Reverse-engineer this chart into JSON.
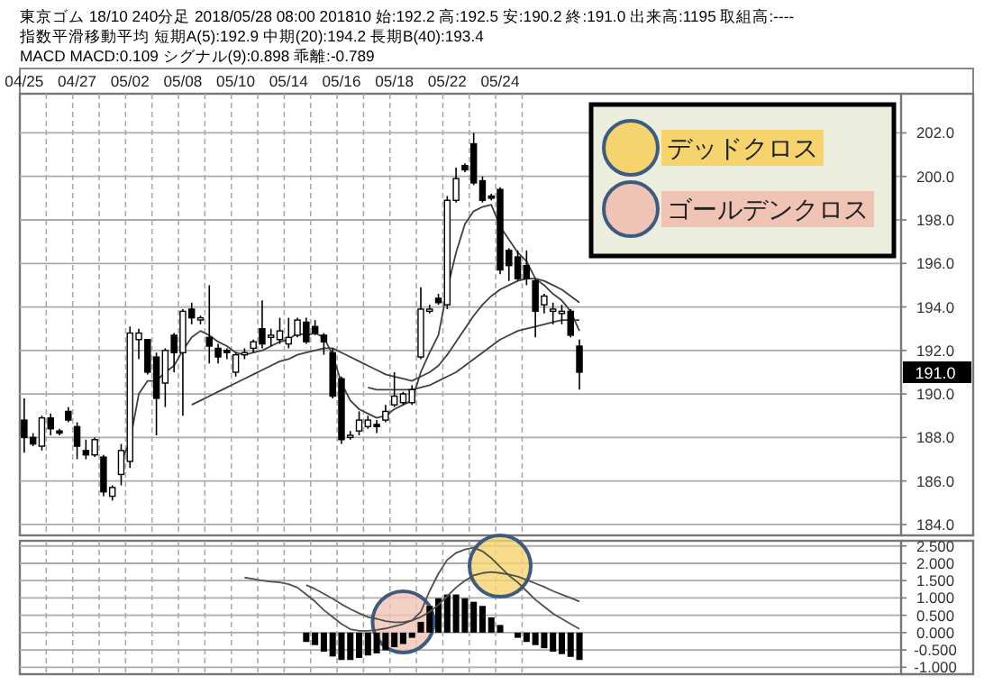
{
  "chart_data": [
    {
      "type": "candlestick",
      "title": "東京ゴム 18/10 240分足 2018/05/28 08:00 201810 始:192.2 高:192.5 安:190.2 終:191.0 出来高:1195 取組高:----",
      "subtitle": "指数平滑移動平均 短期A(5):192.9 中期(20):194.2 長期B(40):193.4",
      "annotations": [
        "MACD MACD:0.109 シグナル(9):0.898 乖離:-0.789",
        {
          "text": "191.0",
          "y": 191.0
        }
      ],
      "categories": [
        "04/25",
        null,
        null,
        null,
        null,
        null,
        "04/27",
        null,
        null,
        null,
        null,
        null,
        "05/02",
        null,
        null,
        null,
        null,
        null,
        "05/08",
        null,
        null,
        null,
        null,
        null,
        "05/10",
        null,
        null,
        null,
        null,
        null,
        "05/14",
        null,
        null,
        null,
        null,
        null,
        "05/16",
        null,
        null,
        null,
        null,
        null,
        "05/18",
        null,
        null,
        null,
        null,
        null,
        "05/22",
        null,
        null,
        null,
        null,
        null,
        "05/24",
        null,
        null,
        null,
        null,
        null,
        null,
        null,
        null,
        null,
        null,
        null,
        null,
        null,
        null,
        null,
        null,
        null,
        null,
        null,
        null,
        null,
        null,
        null,
        null,
        null,
        null,
        null,
        null,
        null,
        null,
        null,
        null,
        null,
        null,
        null,
        null,
        null,
        null,
        null,
        null,
        null,
        null,
        null,
        null,
        null
      ],
      "ohlc": [
        [
          188.8,
          189.8,
          187.3,
          188.0
        ],
        [
          188.0,
          188.2,
          187.6,
          187.7
        ],
        [
          187.6,
          189.0,
          187.4,
          188.9
        ],
        [
          188.9,
          189.1,
          188.1,
          188.4
        ],
        [
          188.3,
          188.4,
          188.1,
          188.2
        ],
        [
          189.2,
          189.4,
          188.7,
          188.8
        ],
        [
          188.5,
          188.7,
          187.0,
          187.6
        ],
        [
          187.4,
          187.9,
          187.0,
          187.2
        ],
        [
          187.2,
          188.0,
          187.1,
          187.9
        ],
        [
          187.1,
          187.2,
          185.3,
          185.5
        ],
        [
          185.3,
          185.8,
          185.1,
          185.7
        ],
        [
          186.3,
          187.7,
          185.8,
          187.4
        ],
        [
          186.9,
          193.1,
          186.6,
          192.8
        ],
        [
          192.5,
          193.0,
          191.6,
          192.8
        ],
        [
          192.5,
          192.5,
          190.9,
          191.0
        ],
        [
          191.7,
          191.9,
          188.1,
          189.8
        ],
        [
          190.5,
          192.1,
          189.4,
          192.0
        ],
        [
          192.7,
          192.8,
          191.0,
          191.9
        ],
        [
          191.9,
          193.9,
          189.0,
          193.8
        ],
        [
          193.9,
          194.2,
          193.2,
          193.5
        ],
        [
          193.4,
          193.6,
          193.2,
          193.5
        ],
        [
          192.6,
          195.0,
          191.4,
          192.2
        ],
        [
          192.1,
          192.3,
          191.4,
          191.7
        ],
        [
          192.0,
          192.1,
          191.6,
          191.9
        ],
        [
          191.0,
          191.9,
          190.8,
          191.8
        ],
        [
          191.8,
          192.1,
          191.6,
          191.9
        ],
        [
          192.1,
          192.5,
          191.9,
          192.4
        ],
        [
          193.0,
          194.3,
          192.1,
          192.3
        ],
        [
          192.6,
          193.0,
          192.2,
          192.7
        ],
        [
          192.5,
          193.5,
          192.3,
          192.9
        ],
        [
          192.3,
          193.5,
          192.1,
          192.6
        ],
        [
          192.7,
          193.5,
          192.6,
          193.4
        ],
        [
          193.3,
          193.5,
          192.3,
          192.4
        ],
        [
          193.1,
          193.4,
          192.7,
          192.8
        ],
        [
          192.7,
          192.8,
          191.8,
          192.4
        ],
        [
          191.9,
          192.1,
          189.8,
          189.9
        ],
        [
          190.7,
          190.8,
          187.7,
          187.9
        ],
        [
          188.0,
          188.3,
          187.9,
          188.1
        ],
        [
          188.3,
          189.2,
          188.1,
          188.8
        ],
        [
          188.5,
          189.0,
          188.4,
          188.8
        ],
        [
          188.6,
          188.8,
          188.2,
          188.5
        ],
        [
          188.8,
          189.5,
          188.7,
          189.2
        ],
        [
          189.5,
          191.0,
          189.4,
          189.9
        ],
        [
          189.6,
          190.1,
          189.5,
          190.0
        ],
        [
          189.6,
          190.4,
          189.5,
          190.2
        ],
        [
          191.7,
          194.9,
          191.6,
          193.9
        ],
        [
          193.8,
          194.1,
          193.7,
          193.9
        ],
        [
          194.4,
          194.6,
          194.1,
          194.2
        ],
        [
          194.1,
          199.1,
          193.9,
          198.9
        ],
        [
          198.9,
          200.4,
          198.8,
          199.9
        ],
        [
          200.5,
          200.6,
          200.2,
          200.3
        ],
        [
          201.5,
          202.0,
          199.6,
          199.7
        ],
        [
          199.8,
          200.0,
          198.8,
          198.9
        ],
        [
          199.1,
          199.2,
          198.9,
          199.0
        ],
        [
          199.4,
          199.5,
          195.5,
          195.7
        ],
        [
          196.6,
          196.7,
          195.2,
          195.9
        ],
        [
          196.3,
          196.6,
          195.2,
          195.3
        ],
        [
          195.9,
          196.6,
          195.0,
          195.3
        ],
        [
          195.2,
          195.3,
          192.6,
          193.8
        ],
        [
          194.1,
          194.6,
          193.7,
          194.5
        ],
        [
          193.8,
          194.2,
          193.2,
          193.9
        ],
        [
          193.7,
          194.1,
          193.2,
          193.8
        ],
        [
          193.8,
          193.9,
          192.6,
          192.7
        ],
        [
          192.2,
          192.5,
          190.2,
          191.0
        ],
        null,
        null,
        null,
        null,
        null,
        null,
        null,
        null,
        null,
        null,
        null,
        null,
        null,
        null,
        null,
        null,
        null,
        null,
        null,
        null,
        null,
        null,
        null,
        null,
        null,
        null,
        null,
        null,
        null,
        null,
        null,
        null,
        null,
        null,
        null,
        null
      ],
      "series": [
        {
          "type": "line",
          "color": "#404040",
          "values": [
            null,
            null,
            null,
            null,
            null,
            null,
            null,
            null,
            null,
            null,
            null,
            186.9,
            187.8,
            190.0,
            190.6,
            190.6,
            191.0,
            191.3,
            192.0,
            192.6,
            192.9,
            192.7,
            192.4,
            192.2,
            191.9,
            191.8,
            191.9,
            192.0,
            192.2,
            192.4,
            192.5,
            192.8,
            192.7,
            192.8,
            192.6,
            191.8,
            190.5,
            189.7,
            189.3,
            189.1,
            188.9,
            189.0,
            189.3,
            189.5,
            189.7,
            191.0,
            191.9,
            192.7,
            194.8,
            196.5,
            197.8,
            198.4,
            198.6,
            198.7,
            197.7,
            197.1,
            196.5,
            196.1,
            195.3,
            195.0,
            194.6,
            194.3,
            193.8,
            192.9,
            null,
            null,
            null,
            null,
            null,
            null,
            null,
            null,
            null,
            null,
            null,
            null,
            null,
            null,
            null,
            null,
            null,
            null,
            null,
            null,
            null,
            null,
            null,
            null,
            null,
            null,
            null,
            null,
            null,
            null,
            null,
            null,
            null,
            null,
            null,
            null
          ]
        },
        {
          "type": "line",
          "color": "#404040",
          "values": [
            null,
            null,
            null,
            null,
            null,
            null,
            null,
            null,
            null,
            null,
            null,
            null,
            null,
            null,
            null,
            null,
            null,
            null,
            null,
            189.5,
            189.7,
            189.9,
            190.1,
            190.3,
            190.5,
            190.7,
            190.9,
            191.1,
            191.3,
            191.5,
            191.6,
            191.8,
            191.9,
            192.0,
            192.1,
            192.1,
            191.9,
            191.7,
            191.5,
            191.3,
            191.1,
            190.9,
            190.8,
            190.7,
            190.6,
            190.8,
            191.0,
            191.3,
            191.8,
            192.4,
            193.0,
            193.6,
            194.1,
            194.5,
            194.8,
            195.0,
            195.2,
            195.3,
            195.3,
            195.2,
            195.0,
            194.8,
            194.5,
            194.2,
            null,
            null,
            null,
            null,
            null,
            null,
            null,
            null,
            null,
            null,
            null,
            null,
            null,
            null,
            null,
            null,
            null,
            null,
            null,
            null,
            null,
            null,
            null,
            null,
            null,
            null,
            null,
            null,
            null,
            null,
            null,
            null,
            null,
            null,
            null,
            null
          ]
        },
        {
          "type": "line",
          "color": "#404040",
          "values": [
            null,
            null,
            null,
            null,
            null,
            null,
            null,
            null,
            null,
            null,
            null,
            null,
            null,
            null,
            null,
            null,
            null,
            null,
            null,
            null,
            null,
            null,
            null,
            null,
            null,
            null,
            null,
            null,
            null,
            null,
            null,
            null,
            null,
            null,
            null,
            null,
            null,
            null,
            null,
            190.3,
            190.2,
            190.2,
            190.2,
            190.2,
            190.2,
            190.3,
            190.4,
            190.6,
            190.8,
            191.0,
            191.3,
            191.6,
            191.9,
            192.2,
            192.5,
            192.7,
            192.9,
            193.0,
            193.1,
            193.2,
            193.3,
            193.4,
            193.4,
            193.4,
            null,
            null,
            null,
            null,
            null,
            null,
            null,
            null,
            null,
            null,
            null,
            null,
            null,
            null,
            null,
            null,
            null,
            null,
            null,
            null,
            null,
            null,
            null,
            null,
            null,
            null,
            null,
            null,
            null,
            null,
            null,
            null,
            null,
            null,
            null,
            null
          ]
        }
      ],
      "ylim": [
        183.5,
        203.8
      ],
      "yticks": [
        {
          "value": 184,
          "label": "184.0"
        },
        {
          "value": 186,
          "label": "186.0"
        },
        {
          "value": 188,
          "label": "188.0"
        },
        {
          "value": 190,
          "label": "190.0"
        },
        {
          "value": 192,
          "label": "192.0"
        },
        {
          "value": 194,
          "label": "194.0"
        },
        {
          "value": 196,
          "label": "196.0"
        },
        {
          "value": 198,
          "label": "198.0"
        },
        {
          "value": 200,
          "label": "200.0"
        },
        {
          "value": 202,
          "label": "202.0"
        }
      ],
      "grid": true
    },
    {
      "type": "bar",
      "categories": [
        null,
        null,
        null,
        null,
        null,
        null,
        null,
        null,
        null,
        null,
        null,
        null,
        null,
        null,
        null,
        null,
        null,
        null,
        null,
        null,
        null,
        null,
        null,
        null,
        null,
        null,
        null,
        null,
        null,
        null,
        null,
        null,
        null,
        null,
        null,
        null,
        null,
        null,
        null,
        null,
        null,
        null,
        null,
        null,
        null,
        null,
        null,
        null,
        null,
        null,
        null,
        null,
        null,
        null,
        null,
        null,
        null,
        null,
        null,
        null,
        null,
        null,
        null,
        null,
        null,
        null,
        null,
        null,
        null,
        null,
        null,
        null,
        null,
        null,
        null,
        null,
        null,
        null,
        null,
        null,
        null,
        null,
        null,
        null,
        null,
        null,
        null,
        null,
        null,
        null,
        null,
        null,
        null,
        null,
        null,
        null,
        null,
        null,
        null,
        null
      ],
      "series": [
        {
          "type": "bar",
          "color": "#000000",
          "values": [
            null,
            null,
            null,
            null,
            null,
            null,
            null,
            null,
            null,
            null,
            null,
            null,
            null,
            null,
            null,
            null,
            null,
            null,
            null,
            null,
            null,
            null,
            null,
            null,
            null,
            null,
            null,
            null,
            null,
            null,
            null,
            null,
            -0.27,
            -0.36,
            -0.55,
            -0.69,
            -0.79,
            -0.79,
            -0.73,
            -0.66,
            -0.6,
            -0.51,
            -0.42,
            -0.33,
            -0.15,
            0.31,
            0.77,
            0.99,
            1.1,
            1.1,
            0.99,
            0.89,
            0.77,
            0.44,
            0.22,
            null,
            -0.15,
            -0.27,
            -0.36,
            -0.45,
            -0.55,
            -0.62,
            -0.7,
            -0.789,
            null,
            null,
            null,
            null,
            null,
            null,
            null,
            null,
            null,
            null,
            null,
            null,
            null,
            null,
            null,
            null,
            null,
            null,
            null,
            null,
            null,
            null,
            null,
            null,
            null,
            null,
            null,
            null,
            null,
            null,
            null,
            null,
            null,
            null,
            null,
            null
          ]
        },
        {
          "type": "line",
          "color": "#505050",
          "values": [
            null,
            null,
            null,
            null,
            null,
            null,
            null,
            null,
            null,
            null,
            null,
            null,
            null,
            null,
            null,
            null,
            null,
            null,
            null,
            null,
            null,
            null,
            null,
            null,
            null,
            1.59,
            1.55,
            1.5,
            1.47,
            1.45,
            1.4,
            1.3,
            1.1,
            0.9,
            0.65,
            0.45,
            0.25,
            0.1,
            0.05,
            0.05,
            0.08,
            0.12,
            0.18,
            0.25,
            0.35,
            0.6,
            1.2,
            1.7,
            2.1,
            2.3,
            2.4,
            2.45,
            2.35,
            2.15,
            1.9,
            1.65,
            1.45,
            1.2,
            0.95,
            0.75,
            0.55,
            0.4,
            0.25,
            0.109,
            null,
            null,
            null,
            null,
            null,
            null,
            null,
            null,
            null,
            null,
            null,
            null,
            null,
            null,
            null,
            null,
            null,
            null,
            null,
            null,
            null,
            null,
            null,
            null,
            null,
            null,
            null,
            null,
            null,
            null,
            null,
            null,
            null,
            null,
            null,
            null
          ]
        },
        {
          "type": "line",
          "color": "#505050",
          "values": [
            null,
            null,
            null,
            null,
            null,
            null,
            null,
            null,
            null,
            null,
            null,
            null,
            null,
            null,
            null,
            null,
            null,
            null,
            null,
            null,
            null,
            null,
            null,
            null,
            null,
            null,
            null,
            null,
            null,
            null,
            null,
            null,
            1.37,
            1.26,
            1.12,
            0.98,
            0.82,
            0.68,
            0.56,
            0.45,
            0.4,
            0.33,
            0.3,
            0.3,
            0.35,
            0.45,
            0.6,
            0.8,
            1.05,
            1.3,
            1.5,
            1.65,
            1.72,
            1.75,
            1.72,
            1.68,
            1.62,
            1.52,
            1.42,
            1.32,
            1.2,
            1.1,
            1.0,
            0.898,
            null,
            null,
            null,
            null,
            null,
            null,
            null,
            null,
            null,
            null,
            null,
            null,
            null,
            null,
            null,
            null,
            null,
            null,
            null,
            null,
            null,
            null,
            null,
            null,
            null,
            null,
            null,
            null,
            null,
            null,
            null,
            null,
            null,
            null,
            null,
            null
          ]
        },
        {
          "type": "scatter",
          "name": "デッドクロス",
          "color": "#f5d46e",
          "marker": "circle",
          "values": [
            null,
            null,
            null,
            null,
            null,
            null,
            null,
            null,
            null,
            null,
            null,
            null,
            null,
            null,
            null,
            null,
            null,
            null,
            null,
            null,
            null,
            null,
            null,
            null,
            null,
            null,
            null,
            null,
            null,
            null,
            null,
            null,
            null,
            null,
            null,
            null,
            null,
            null,
            null,
            null,
            null,
            null,
            null,
            null,
            null,
            null,
            null,
            null,
            null,
            null,
            null,
            null,
            null,
            null,
            1.92,
            null,
            null,
            null,
            null,
            null,
            null,
            null,
            null,
            null,
            null,
            null,
            null,
            null,
            null,
            null,
            null,
            null,
            null,
            null,
            null,
            null,
            null,
            null,
            null,
            null,
            null,
            null,
            null,
            null,
            null,
            null,
            null,
            null,
            null,
            null,
            null,
            null,
            null,
            null,
            null,
            null,
            null,
            null,
            null,
            null
          ]
        },
        {
          "type": "scatter",
          "name": "ゴールデンクロス",
          "color": "#f0c4b4",
          "marker": "circle",
          "values": [
            null,
            null,
            null,
            null,
            null,
            null,
            null,
            null,
            null,
            null,
            null,
            null,
            null,
            null,
            null,
            null,
            null,
            null,
            null,
            null,
            null,
            null,
            null,
            null,
            null,
            null,
            null,
            null,
            null,
            null,
            null,
            null,
            null,
            null,
            null,
            null,
            null,
            null,
            null,
            null,
            null,
            null,
            null,
            0.31,
            null,
            null,
            null,
            null,
            null,
            null,
            null,
            null,
            null,
            null,
            null,
            null,
            null,
            null,
            null,
            null,
            null,
            null,
            null,
            null,
            null,
            null,
            null,
            null,
            null,
            null,
            null,
            null,
            null,
            null,
            null,
            null,
            null,
            null,
            null,
            null,
            null,
            null,
            null,
            null,
            null,
            null,
            null,
            null,
            null,
            null,
            null,
            null,
            null,
            null,
            null,
            null,
            null,
            null,
            null,
            null
          ]
        }
      ],
      "ylim": [
        -1.2,
        2.65
      ],
      "yticks": [
        {
          "value": 2.5,
          "label": "2.500"
        },
        {
          "value": 2,
          "label": "2.000"
        },
        {
          "value": 1.5,
          "label": "1.500"
        },
        {
          "value": 1,
          "label": "1.000"
        },
        {
          "value": 0.5,
          "label": "0.500"
        },
        {
          "value": 0,
          "label": "0.000"
        },
        {
          "value": -0.5,
          "label": "-0.500"
        },
        {
          "value": -1,
          "label": "-1.000"
        }
      ],
      "grid": true,
      "legend": "top right",
      "tick_labels": "y"
    }
  ]
}
